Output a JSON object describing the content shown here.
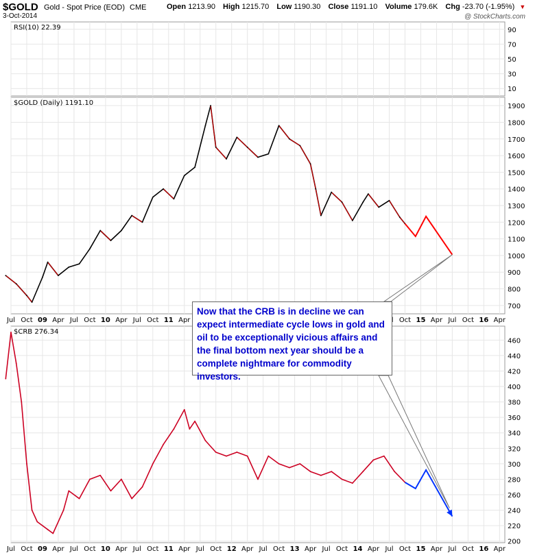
{
  "header": {
    "symbol": "$GOLD",
    "description": "Gold - Spot Price (EOD)",
    "exchange": "CME",
    "date": "3-Oct-2014",
    "open_label": "Open",
    "open": "1213.90",
    "high_label": "High",
    "high": "1215.70",
    "low_label": "Low",
    "low": "1190.30",
    "close_label": "Close",
    "close": "1191.10",
    "volume_label": "Volume",
    "volume": "179.6K",
    "chg_label": "Chg",
    "chg": "-23.70 (-1.95%)",
    "brand": "@ StockCharts.com"
  },
  "annotation": "Now that the CRB is in decline we can expect intermediate cycle lows in gold and oil to be exceptionally vicious affairs and the final bottom next year should be a complete nightmare for commodity investors.",
  "colors": {
    "gold_up": "#000000",
    "gold_down": "#cc0000",
    "crb_line": "#cc0022",
    "gold_projection": "#ff0000",
    "crb_projection": "#0033ff",
    "grid": "#e6e6e6",
    "text_blue": "#0000cc"
  },
  "chart_data": [
    {
      "type": "line",
      "label": "RSI(10) 22.39",
      "ylim": [
        0,
        100
      ],
      "yticks": [
        10,
        30,
        50,
        70,
        90
      ],
      "series": []
    },
    {
      "type": "line",
      "label": "$GOLD (Daily) 1191.10",
      "x_ticks": [
        "Jul",
        "Oct",
        "09",
        "Apr",
        "Jul",
        "Oct",
        "10",
        "Apr",
        "Jul",
        "Oct",
        "11",
        "Apr",
        "Jul",
        "Oct",
        "12",
        "Apr",
        "Jul",
        "Oct",
        "13",
        "Apr",
        "Jul",
        "Oct",
        "14",
        "Apr",
        "Jul",
        "Oct",
        "15",
        "Apr",
        "Jul",
        "Oct",
        "16",
        "Apr"
      ],
      "ylim": [
        650,
        1950
      ],
      "yticks": [
        700,
        800,
        900,
        1000,
        1100,
        1200,
        1300,
        1400,
        1500,
        1600,
        1700,
        1800,
        1900
      ],
      "series": [
        {
          "x": [
            "2008-06",
            "2008-08",
            "2008-10",
            "2008-11",
            "2009-01",
            "2009-02",
            "2009-04",
            "2009-06",
            "2009-08",
            "2009-10",
            "2009-12",
            "2010-02",
            "2010-04",
            "2010-06",
            "2010-08",
            "2010-10",
            "2010-12",
            "2011-02",
            "2011-04",
            "2011-06",
            "2011-08",
            "2011-09",
            "2011-10",
            "2011-12",
            "2012-02",
            "2012-04",
            "2012-06",
            "2012-08",
            "2012-10",
            "2012-12",
            "2013-02",
            "2013-04",
            "2013-05",
            "2013-06",
            "2013-08",
            "2013-10",
            "2013-12",
            "2014-02",
            "2014-03",
            "2014-05",
            "2014-07",
            "2014-09",
            "2014-10"
          ],
          "values": [
            880,
            830,
            760,
            720,
            870,
            960,
            880,
            930,
            950,
            1040,
            1150,
            1090,
            1150,
            1240,
            1200,
            1350,
            1400,
            1340,
            1480,
            1530,
            1780,
            1900,
            1650,
            1580,
            1710,
            1650,
            1590,
            1610,
            1780,
            1700,
            1660,
            1550,
            1400,
            1240,
            1380,
            1320,
            1210,
            1320,
            1370,
            1290,
            1330,
            1230,
            1191
          ]
        }
      ],
      "projection": {
        "x": [
          "2014-10",
          "2014-12",
          "2015-02",
          "2015-07"
        ],
        "values": [
          1191,
          1115,
          1235,
          1005
        ]
      }
    },
    {
      "type": "line",
      "label": "$CRB 276.34",
      "ylim": [
        198,
        478
      ],
      "yticks": [
        200,
        220,
        240,
        260,
        280,
        300,
        320,
        340,
        360,
        380,
        400,
        420,
        440,
        460
      ],
      "series": [
        {
          "x": [
            "2008-06",
            "2008-07",
            "2008-08",
            "2008-09",
            "2008-10",
            "2008-11",
            "2008-12",
            "2009-02",
            "2009-03",
            "2009-05",
            "2009-06",
            "2009-08",
            "2009-10",
            "2009-12",
            "2010-02",
            "2010-04",
            "2010-06",
            "2010-08",
            "2010-10",
            "2010-12",
            "2011-02",
            "2011-04",
            "2011-05",
            "2011-06",
            "2011-08",
            "2011-10",
            "2011-12",
            "2012-02",
            "2012-04",
            "2012-06",
            "2012-08",
            "2012-10",
            "2012-12",
            "2013-02",
            "2013-04",
            "2013-06",
            "2013-08",
            "2013-10",
            "2013-12",
            "2014-02",
            "2014-04",
            "2014-06",
            "2014-08",
            "2014-10"
          ],
          "values": [
            410,
            470,
            430,
            380,
            300,
            240,
            225,
            215,
            210,
            240,
            265,
            255,
            280,
            285,
            265,
            280,
            255,
            270,
            300,
            325,
            345,
            370,
            345,
            355,
            330,
            315,
            310,
            315,
            310,
            280,
            310,
            300,
            295,
            300,
            290,
            285,
            290,
            280,
            275,
            290,
            305,
            310,
            290,
            276
          ]
        }
      ],
      "projection": {
        "x": [
          "2014-10",
          "2014-12",
          "2015-02",
          "2015-07"
        ],
        "values": [
          276,
          268,
          292,
          232
        ]
      }
    }
  ]
}
